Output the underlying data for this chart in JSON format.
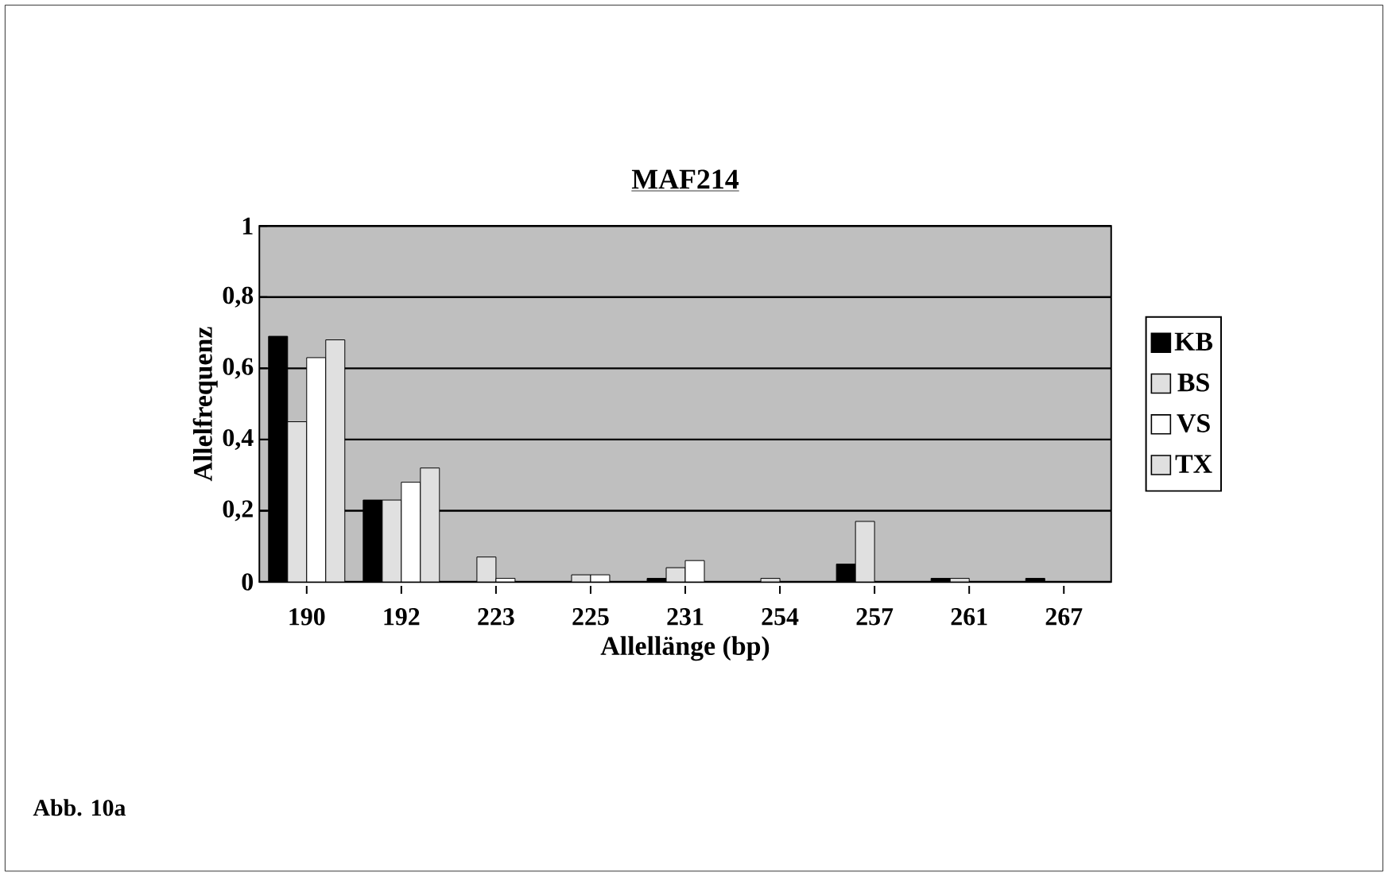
{
  "chart_data": {
    "type": "bar",
    "title": "MAF214",
    "xlabel": "Allellänge (bp)",
    "ylabel": "Allelfrequenz",
    "categories": [
      "190",
      "192",
      "223",
      "225",
      "231",
      "254",
      "257",
      "261",
      "267"
    ],
    "series": [
      {
        "name": "KB",
        "color": "#000000",
        "values": [
          0.69,
          0.23,
          0,
          0,
          0.01,
          0,
          0.05,
          0.01,
          0.01
        ]
      },
      {
        "name": "BS",
        "color": "#e0e0e0",
        "values": [
          0.45,
          0.23,
          0.07,
          0.02,
          0.04,
          0.01,
          0.17,
          0.01,
          0
        ]
      },
      {
        "name": "VS",
        "color": "#ffffff",
        "values": [
          0.63,
          0.28,
          0.01,
          0.02,
          0.06,
          0,
          0,
          0,
          0
        ]
      },
      {
        "name": "TX",
        "color": "#e0e0e0",
        "values": [
          0.68,
          0.32,
          0,
          0,
          0,
          0,
          0,
          0,
          0
        ]
      }
    ],
    "ylim": [
      0,
      1
    ],
    "yticks": [
      0,
      {
        "value": 0.2,
        "label": "0,2"
      },
      {
        "value": 0.4,
        "label": "0,4"
      },
      {
        "value": 0.6,
        "label": "0,6"
      },
      {
        "value": 0.8,
        "label": "0,8"
      },
      1
    ],
    "grid": "y",
    "legend": "right",
    "annotations": [
      "Abb. 10a"
    ]
  }
}
